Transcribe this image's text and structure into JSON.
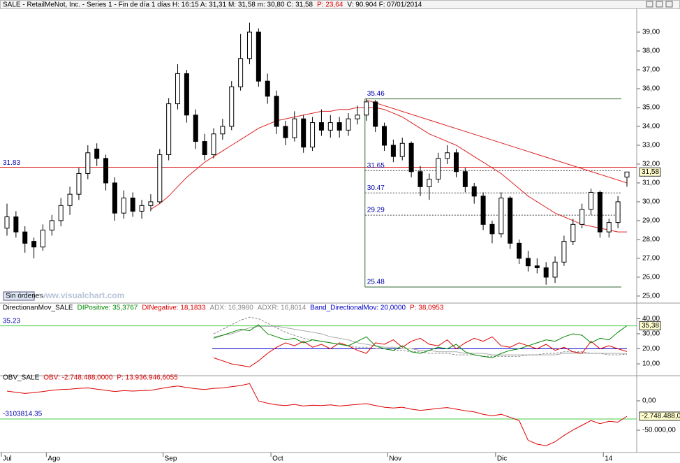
{
  "header": {
    "parts": [
      {
        "text": "SALE - RetailMeNot, Inc. - Series 1 - Fin de día 1 días  H: 16:15  A: 31,31  M: 31,58  m: 30,80  C: 31,58",
        "color": "#000000"
      },
      {
        "text": "P: 23,64",
        "color": "#dd0000"
      },
      {
        "text": "V: 90.904  F: 07/01/2014",
        "color": "#000000"
      }
    ],
    "status": "Sin órdenes",
    "watermark": "www.visualchart.com"
  },
  "chart_data": [
    {
      "type": "candlestick",
      "ylim": [
        24.7,
        40.26
      ],
      "yticks": [
        {
          "value": 25,
          "label": "25,00"
        },
        {
          "value": 26,
          "label": "26,00"
        },
        {
          "value": 27,
          "label": "27,00"
        },
        {
          "value": 28,
          "label": "28,00"
        },
        {
          "value": 29,
          "label": "29,00"
        },
        {
          "value": 30,
          "label": "30,00"
        },
        {
          "value": 31,
          "label": "31,00"
        },
        {
          "value": 32,
          "label": "32,00"
        },
        {
          "value": 33,
          "label": "33,00"
        },
        {
          "value": 34,
          "label": "34,00"
        },
        {
          "value": 35,
          "label": "35,00"
        },
        {
          "value": 36,
          "label": "36,00"
        },
        {
          "value": 37,
          "label": "37,00"
        },
        {
          "value": 38,
          "label": "38,00"
        },
        {
          "value": 39,
          "label": "39,00"
        }
      ],
      "categories": [
        "Jul",
        null,
        null,
        null,
        null,
        "Ago",
        null,
        null,
        null,
        null,
        null,
        null,
        null,
        null,
        null,
        null,
        null,
        null,
        "Sep",
        null,
        null,
        null,
        null,
        null,
        null,
        null,
        null,
        null,
        null,
        null,
        "Oct",
        null,
        null,
        null,
        null,
        null,
        null,
        null,
        null,
        null,
        null,
        null,
        null,
        "Nov",
        null,
        null,
        null,
        null,
        null,
        null,
        null,
        null,
        null,
        null,
        null,
        "Dic",
        null,
        null,
        null,
        null,
        null,
        null,
        null,
        null,
        null,
        null,
        null,
        "14",
        null,
        null
      ],
      "ohlc": [
        [
          28.6,
          29.9,
          28.2,
          29.2
        ],
        [
          29.2,
          29.5,
          28.1,
          28.4
        ],
        [
          28.4,
          28.7,
          27.3,
          27.8
        ],
        [
          27.9,
          28.1,
          27.0,
          27.6
        ],
        [
          27.6,
          28.8,
          27.4,
          28.5
        ],
        [
          28.5,
          29.3,
          28.2,
          29.0
        ],
        [
          29.0,
          30.2,
          28.7,
          29.8
        ],
        [
          29.8,
          30.8,
          29.3,
          30.4
        ],
        [
          30.4,
          31.8,
          30.1,
          31.5
        ],
        [
          31.5,
          33.0,
          31.2,
          32.6
        ],
        [
          32.8,
          33.1,
          31.9,
          32.3
        ],
        [
          32.3,
          32.5,
          30.6,
          31.0
        ],
        [
          31.0,
          31.3,
          29.0,
          29.4
        ],
        [
          29.4,
          30.6,
          29.1,
          30.2
        ],
        [
          30.2,
          30.5,
          29.2,
          29.5
        ],
        [
          29.5,
          30.1,
          29.1,
          29.8
        ],
        [
          29.8,
          30.4,
          29.5,
          30.0
        ],
        [
          30.0,
          32.8,
          29.9,
          32.5
        ],
        [
          32.5,
          35.5,
          32.2,
          35.2
        ],
        [
          35.2,
          37.3,
          34.9,
          36.8
        ],
        [
          36.8,
          37.0,
          34.2,
          34.6
        ],
        [
          34.6,
          34.9,
          32.8,
          33.2
        ],
        [
          33.2,
          33.6,
          32.2,
          32.5
        ],
        [
          32.5,
          33.9,
          32.3,
          33.6
        ],
        [
          33.6,
          34.4,
          33.3,
          34.0
        ],
        [
          34.0,
          36.4,
          33.8,
          36.1
        ],
        [
          36.1,
          38.9,
          35.9,
          37.6
        ],
        [
          37.6,
          39.5,
          37.3,
          39.0
        ],
        [
          39.0,
          39.2,
          36.1,
          36.4
        ],
        [
          36.4,
          36.8,
          35.2,
          35.6
        ],
        [
          35.6,
          35.9,
          33.6,
          34.0
        ],
        [
          34.0,
          34.3,
          33.0,
          33.4
        ],
        [
          33.4,
          34.8,
          33.2,
          34.4
        ],
        [
          34.4,
          34.6,
          32.6,
          32.9
        ],
        [
          32.9,
          34.5,
          32.7,
          34.2
        ],
        [
          34.2,
          34.9,
          33.5,
          33.8
        ],
        [
          33.8,
          34.6,
          33.4,
          34.2
        ],
        [
          34.2,
          34.5,
          33.4,
          33.8
        ],
        [
          33.8,
          34.7,
          33.5,
          34.4
        ],
        [
          34.4,
          35.1,
          34.1,
          34.6
        ],
        [
          34.6,
          35.46,
          34.3,
          35.3
        ],
        [
          35.3,
          35.4,
          33.7,
          34.0
        ],
        [
          34.0,
          34.2,
          32.7,
          33.0
        ],
        [
          33.0,
          33.3,
          32.1,
          32.4
        ],
        [
          32.4,
          33.4,
          32.2,
          33.1
        ],
        [
          33.1,
          33.2,
          31.3,
          31.6
        ],
        [
          31.6,
          31.9,
          30.3,
          30.8
        ],
        [
          30.8,
          31.5,
          30.1,
          31.2
        ],
        [
          31.2,
          32.6,
          31.0,
          32.3
        ],
        [
          32.3,
          33.0,
          32.0,
          32.6
        ],
        [
          32.6,
          32.8,
          31.3,
          31.6
        ],
        [
          31.6,
          31.8,
          30.5,
          30.8
        ],
        [
          30.8,
          31.0,
          29.9,
          30.3
        ],
        [
          30.3,
          30.5,
          28.5,
          28.8
        ],
        [
          28.8,
          29.0,
          27.8,
          28.3
        ],
        [
          28.3,
          30.5,
          28.1,
          30.2
        ],
        [
          30.2,
          30.3,
          27.5,
          27.8
        ],
        [
          27.8,
          28.0,
          26.7,
          27.0
        ],
        [
          27.0,
          27.4,
          26.3,
          26.6
        ],
        [
          26.6,
          27.0,
          26.2,
          26.5
        ],
        [
          26.5,
          26.8,
          25.6,
          26.0
        ],
        [
          26.0,
          27.1,
          25.7,
          26.8
        ],
        [
          26.8,
          28.2,
          26.6,
          27.9
        ],
        [
          27.9,
          29.1,
          27.7,
          28.8
        ],
        [
          28.8,
          29.9,
          28.6,
          29.6
        ],
        [
          29.6,
          30.7,
          29.3,
          30.5
        ],
        [
          30.5,
          30.6,
          28.1,
          28.4
        ],
        [
          28.4,
          29.1,
          28.1,
          28.9
        ],
        [
          28.9,
          30.3,
          28.6,
          30.0
        ],
        [
          31.31,
          31.58,
          30.8,
          31.58
        ]
      ],
      "last_label": "31,58",
      "ma": {
        "color": "#dd2222",
        "values": [
          null,
          null,
          null,
          null,
          null,
          null,
          null,
          null,
          null,
          null,
          null,
          null,
          null,
          null,
          null,
          null,
          29.6,
          29.9,
          30.3,
          30.8,
          31.3,
          31.7,
          32.1,
          32.4,
          32.7,
          33.0,
          33.3,
          33.6,
          33.9,
          34.1,
          34.3,
          34.4,
          34.5,
          34.6,
          34.7,
          34.8,
          34.8,
          34.9,
          34.9,
          35.0,
          35.0,
          35.0,
          34.9,
          34.7,
          34.5,
          34.2,
          33.9,
          33.6,
          33.4,
          33.2,
          33.0,
          32.7,
          32.4,
          32.1,
          31.8,
          31.5,
          31.1,
          30.7,
          30.3,
          30.0,
          29.7,
          29.4,
          29.2,
          29.0,
          28.8,
          28.7,
          28.6,
          28.5,
          28.4,
          28.4
        ]
      },
      "red_level": 31.83,
      "levels": [
        35.46,
        25.48
      ],
      "dashed_levels": [
        31.65,
        30.47,
        29.29
      ],
      "levels_start": 40,
      "trendline": [
        [
          40,
          35.4
        ],
        [
          69,
          31.0
        ]
      ]
    },
    {
      "type": "line",
      "ylim": [
        2.6,
        43.9
      ],
      "title_parts": [
        {
          "text": "DirectionanMov_SALE",
          "color": "#000000"
        },
        {
          "text": "DIPositive: 35,3767",
          "color": "#008800"
        },
        {
          "text": "DINegative: 18,1833",
          "color": "#dd0000"
        },
        {
          "text": "ADX: 16,3980",
          "color": "#888888"
        },
        {
          "text": "ADXR: 16,8014",
          "color": "#888888"
        },
        {
          "text": "Band_DirectionalMov: 20,0000",
          "color": "#0000cc"
        },
        {
          "text": "P: 38,0953",
          "color": "#dd0000"
        }
      ],
      "yticks": [
        {
          "value": 10,
          "label": "10,00"
        },
        {
          "value": 20,
          "label": "20,00"
        },
        {
          "value": 30,
          "label": "30,00"
        },
        {
          "value": 40,
          "label": "40,00"
        }
      ],
      "series": [
        {
          "color": "#aaaaaa",
          "dash": false,
          "values": [
            null,
            null,
            null,
            null,
            null,
            null,
            null,
            null,
            null,
            null,
            null,
            null,
            null,
            null,
            null,
            null,
            null,
            null,
            null,
            null,
            null,
            null,
            null,
            28,
            29,
            30,
            32,
            34,
            35,
            35,
            35,
            34,
            33,
            32,
            31,
            30,
            28,
            27,
            26,
            24,
            23,
            22,
            21,
            21,
            20,
            20,
            19,
            19,
            18,
            18,
            18,
            17,
            17,
            17,
            16,
            16,
            16,
            16,
            16,
            16,
            16,
            16,
            17,
            17,
            17,
            17,
            17,
            17,
            17,
            16.8014
          ]
        },
        {
          "color": "#888888",
          "dash": true,
          "values": [
            null,
            null,
            null,
            null,
            null,
            null,
            null,
            null,
            null,
            null,
            null,
            null,
            null,
            null,
            null,
            null,
            null,
            null,
            null,
            null,
            null,
            null,
            null,
            30,
            33,
            36,
            39,
            41,
            40,
            37,
            34,
            31,
            29,
            27,
            26,
            25,
            24,
            23,
            22,
            21,
            21,
            20,
            20,
            19,
            19,
            18,
            18,
            17,
            17,
            17,
            16,
            16,
            16,
            15,
            15,
            15,
            15,
            15,
            16,
            16,
            17,
            17,
            18,
            18,
            18,
            17,
            17,
            16,
            16,
            16.398
          ]
        },
        {
          "color": "#dd0000",
          "dash": false,
          "values": [
            null,
            null,
            null,
            null,
            null,
            null,
            null,
            null,
            null,
            null,
            null,
            null,
            null,
            null,
            null,
            null,
            null,
            null,
            null,
            null,
            null,
            null,
            null,
            14,
            12,
            10,
            9,
            8,
            12,
            17,
            21,
            24,
            22,
            25,
            21,
            23,
            20,
            24,
            22,
            19,
            17,
            24,
            23,
            26,
            21,
            25,
            27,
            23,
            22,
            26,
            20,
            24,
            27,
            25,
            28,
            22,
            21,
            24,
            22,
            20,
            23,
            19,
            21,
            18,
            17,
            25,
            20,
            22,
            20,
            18.1833
          ]
        },
        {
          "color": "#008800",
          "dash": false,
          "values": [
            null,
            null,
            null,
            null,
            null,
            null,
            null,
            null,
            null,
            null,
            null,
            null,
            null,
            null,
            null,
            null,
            null,
            null,
            null,
            null,
            null,
            null,
            null,
            27,
            29,
            31,
            33,
            32,
            36,
            30,
            28,
            26,
            27,
            24,
            26,
            25,
            24,
            23,
            22,
            25,
            28,
            22,
            20,
            19,
            22,
            18,
            17,
            19,
            21,
            20,
            23,
            18,
            16,
            15,
            14,
            17,
            19,
            20,
            22,
            24,
            26,
            25,
            28,
            30,
            29,
            24,
            27,
            26,
            31,
            35.3767
          ]
        }
      ],
      "last_label": "35,38",
      "level": 35.23,
      "band": 20
    },
    {
      "type": "line",
      "ylim": [
        -78571,
        30952
      ],
      "y2lim": [
        -6656900,
        1515200
      ],
      "title_parts": [
        {
          "text": "OBV_SALE",
          "color": "#000000"
        },
        {
          "text": "OBV: -2.748.488,0000",
          "color": "#dd0000"
        },
        {
          "text": "P: 13.936.946,6055",
          "color": "#dd0000"
        }
      ],
      "yticks": [
        {
          "value": 0,
          "label": "0,00"
        },
        {
          "value": -50000,
          "label": "-50.000,00"
        }
      ],
      "series": [
        {
          "color": "#dd0000",
          "axis": "y2",
          "values": [
            450000,
            300000,
            150000,
            250000,
            400000,
            550000,
            650000,
            700000,
            800000,
            850000,
            700000,
            550000,
            400000,
            500000,
            450000,
            500000,
            550000,
            750000,
            950000,
            1100000,
            900000,
            750000,
            650000,
            800000,
            850000,
            1000000,
            1150000,
            1400000,
            -800000,
            -1100000,
            -1300000,
            -1400000,
            -1250000,
            -1450000,
            -1350000,
            -1400000,
            -1300000,
            -1450000,
            -1350000,
            -1250000,
            -1150000,
            -1400000,
            -1600000,
            -1700000,
            -1600000,
            -1850000,
            -2000000,
            -1900000,
            -1750000,
            -1650000,
            -1850000,
            -2050000,
            -2200000,
            -2500000,
            -2700000,
            -2500000,
            -2900000,
            -3300000,
            -5800000,
            -6300000,
            -6500000,
            -6000000,
            -5200000,
            -4500000,
            -3900000,
            -3300000,
            -3700000,
            -3400000,
            -3500000,
            -2748488
          ]
        }
      ],
      "last_label": "-2.748.488,0",
      "level": -3103814.35
    }
  ]
}
